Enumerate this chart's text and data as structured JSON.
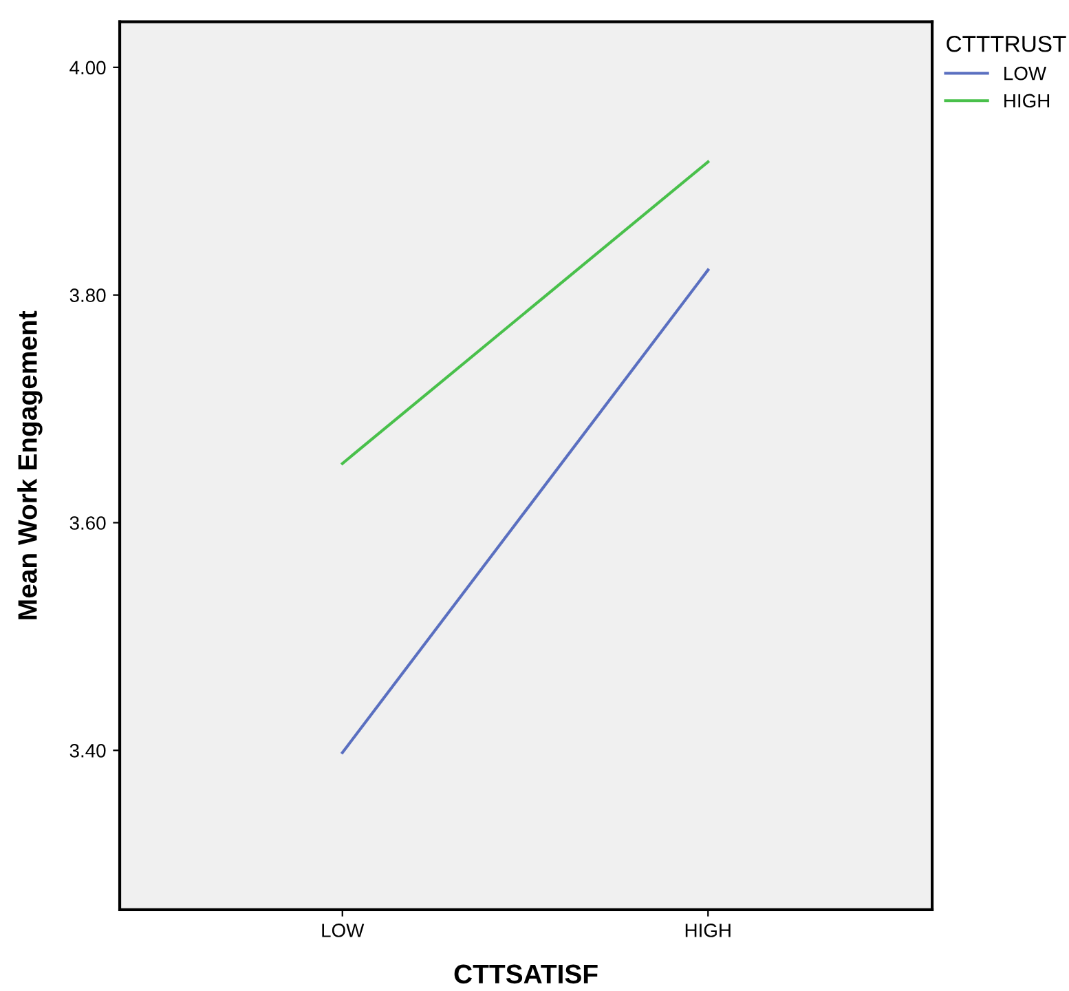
{
  "chart_data": {
    "type": "line",
    "xlabel": "CTTSATISF",
    "ylabel": "Mean Work Engagement",
    "legend_title": "CTTTRUST",
    "categories": [
      "LOW",
      "HIGH"
    ],
    "series": [
      {
        "name": "LOW",
        "color": "#5a6fc0",
        "values": [
          3.398,
          3.822
        ]
      },
      {
        "name": "HIGH",
        "color": "#49c04b",
        "values": [
          3.652,
          3.917
        ]
      }
    ],
    "ylim": [
      3.26,
      4.04
    ],
    "yticks": [
      {
        "value": 3.4,
        "label": "3.40"
      },
      {
        "value": 3.6,
        "label": "3.60"
      },
      {
        "value": 3.8,
        "label": "3.80"
      },
      {
        "value": 4.0,
        "label": "4.00"
      }
    ],
    "grid": false,
    "legend": "top right",
    "marker": "none",
    "line_style": "solid"
  }
}
